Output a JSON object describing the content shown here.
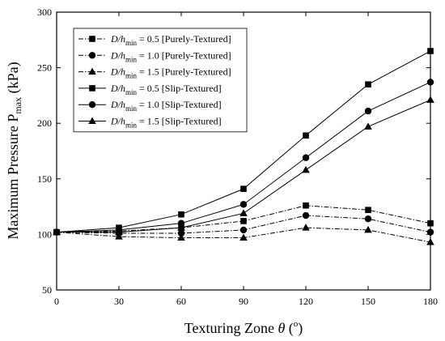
{
  "chart_data": {
    "type": "line",
    "xlabel": {
      "text": "Texturing Zone ",
      "var": "θ",
      "unit_open": " (",
      "unit_sup": "o",
      "unit_close": ")"
    },
    "ylabel": {
      "text": "Maximum Pressure  P",
      "sub": "max",
      "unit": " (kPa)"
    },
    "xlim": [
      0,
      180
    ],
    "ylim": [
      50,
      300
    ],
    "xticks": [
      0,
      30,
      60,
      90,
      120,
      150,
      180
    ],
    "yticks": [
      50,
      100,
      150,
      200,
      250,
      300
    ],
    "grid": false,
    "legend_position": "top-left",
    "x": [
      0,
      30,
      60,
      90,
      120,
      150,
      180
    ],
    "series": [
      {
        "name": "D/hmin = 0.5 [Purely-Textured]",
        "legend": {
          "var": "D/h",
          "sub": "min",
          "rest": " = 0.5 [Purely-Textured]"
        },
        "marker": "square",
        "line": "dashdot",
        "values": [
          102,
          103,
          106,
          112,
          126,
          122,
          110
        ]
      },
      {
        "name": "D/hmin = 1.0 [Purely-Textured]",
        "legend": {
          "var": "D/h",
          "sub": "min",
          "rest": " = 1.0 [Purely-Textured]"
        },
        "marker": "circle",
        "line": "dashdot",
        "values": [
          102,
          101,
          101,
          104,
          117,
          114,
          102
        ]
      },
      {
        "name": "D/hmin = 1.5 [Purely-Textured]",
        "legend": {
          "var": "D/h",
          "sub": "min",
          "rest": " = 1.5 [Purely-Textured]"
        },
        "marker": "triangle",
        "line": "dashdot",
        "values": [
          102,
          98,
          97,
          97,
          106,
          104,
          93
        ]
      },
      {
        "name": "D/hmin = 0.5 [Slip-Textured]",
        "legend": {
          "var": "D/h",
          "sub": "min",
          "rest": " = 0.5 [Slip-Textured]"
        },
        "marker": "square",
        "line": "solid",
        "values": [
          102,
          106,
          118,
          141,
          189,
          235,
          265
        ]
      },
      {
        "name": "D/hmin = 1.0 [Slip-Textured]",
        "legend": {
          "var": "D/h",
          "sub": "min",
          "rest": " = 1.0 [Slip-Textured]"
        },
        "marker": "circle",
        "line": "solid",
        "values": [
          102,
          104,
          110,
          127,
          169,
          211,
          237
        ]
      },
      {
        "name": "D/hmin = 1.5 [Slip-Textured]",
        "legend": {
          "var": "D/h",
          "sub": "min",
          "rest": " = 1.5 [Slip-Textured]"
        },
        "marker": "triangle",
        "line": "solid",
        "values": [
          102,
          102,
          106,
          119,
          158,
          197,
          221
        ]
      }
    ]
  }
}
